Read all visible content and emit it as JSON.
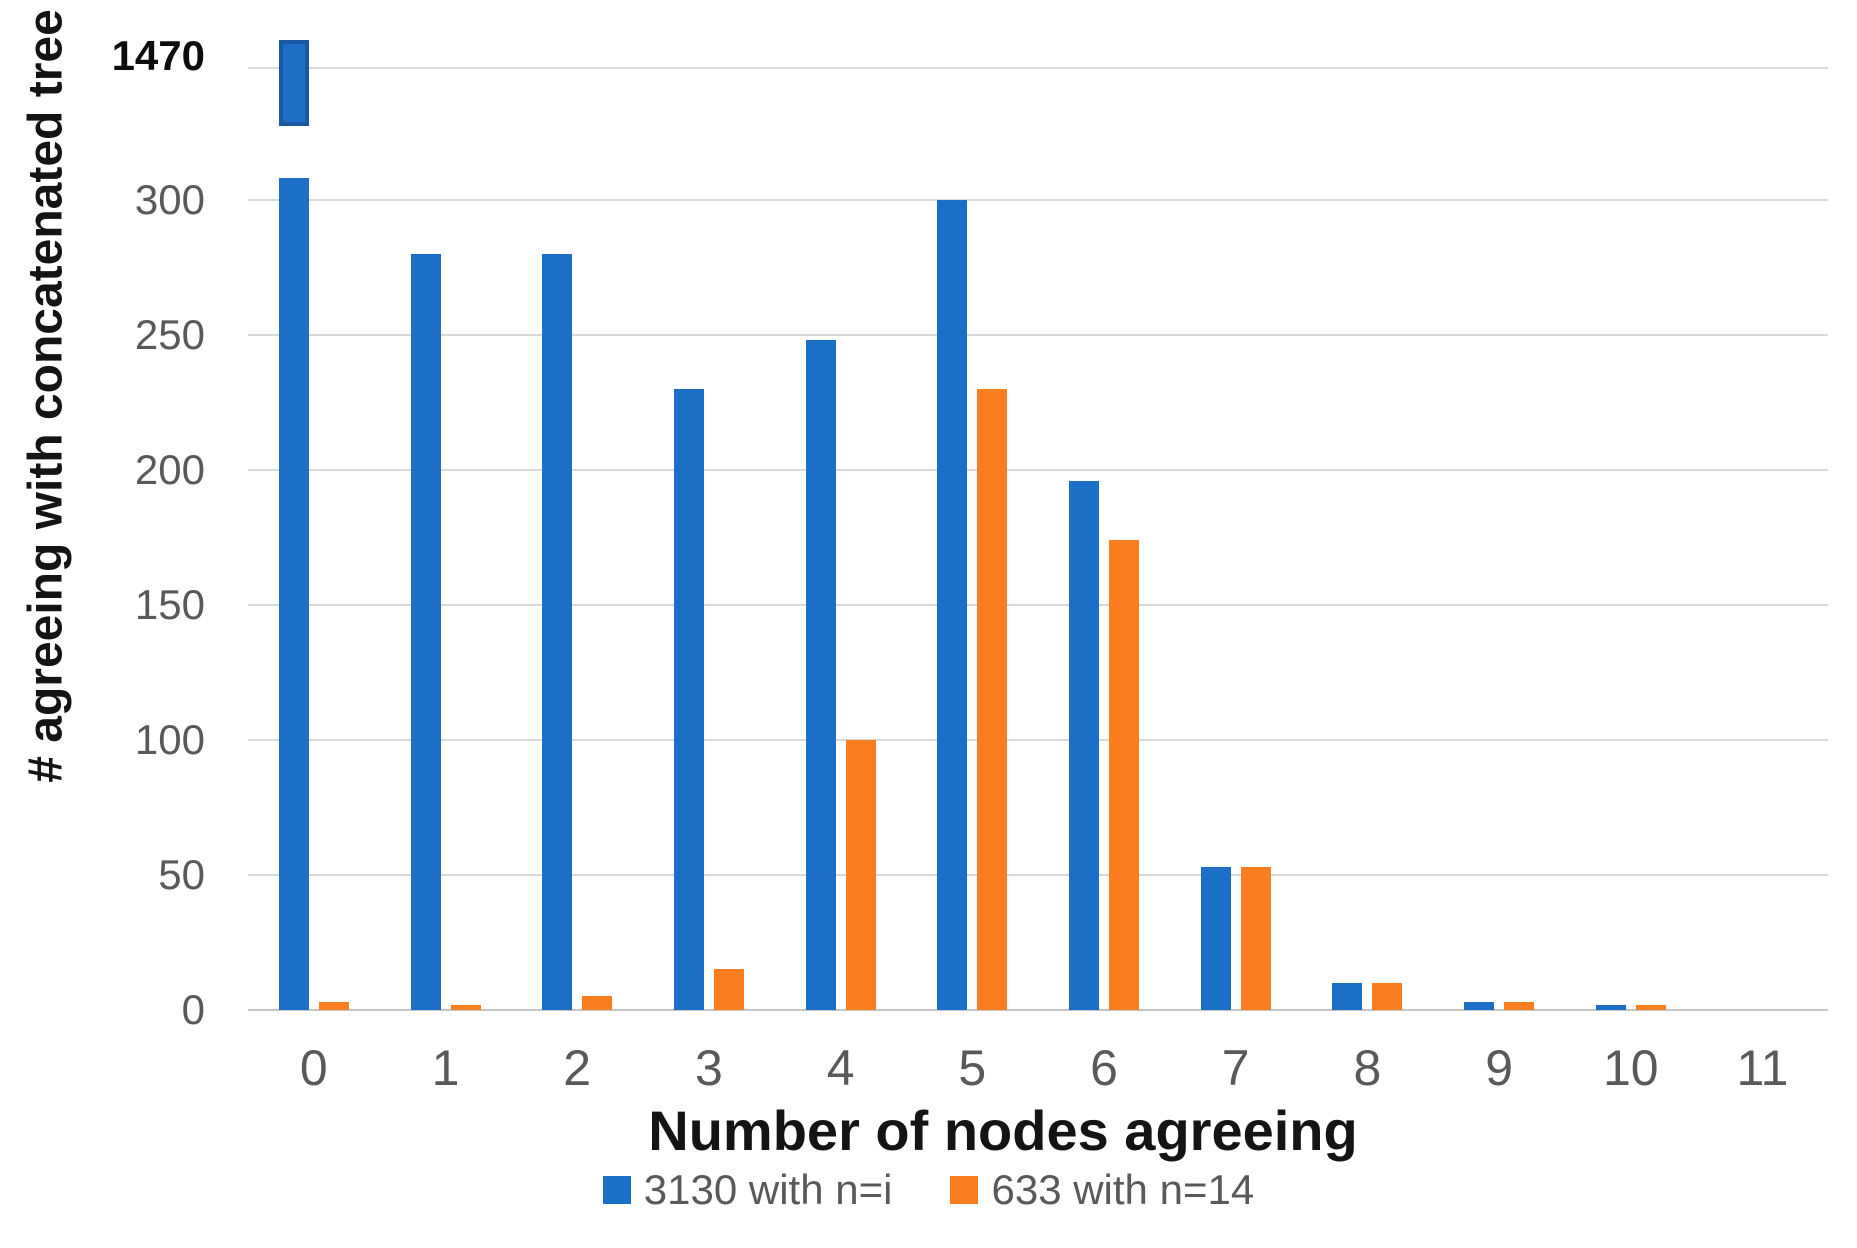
{
  "chart_data": {
    "type": "bar",
    "title": "",
    "xlabel": "Number of nodes agreeing",
    "ylabel": "# agreeing with concatenated tree",
    "categories": [
      "0",
      "1",
      "2",
      "3",
      "4",
      "5",
      "6",
      "7",
      "8",
      "9",
      "10",
      "11"
    ],
    "series": [
      {
        "name": "3130 with n=i",
        "color": "#1c6fc7",
        "values": [
          1470,
          280,
          280,
          230,
          248,
          300,
          196,
          53,
          10,
          3,
          2,
          0
        ]
      },
      {
        "name": "633 with n=14",
        "color": "#fa7e1e",
        "values": [
          3,
          2,
          5,
          15,
          100,
          230,
          174,
          53,
          10,
          3,
          2,
          0
        ]
      }
    ],
    "y_ticks": [
      0,
      50,
      100,
      150,
      200,
      250,
      300
    ],
    "broken_axis": {
      "tick_label": "1470",
      "value": 1470
    },
    "ylim": [
      0,
      310
    ],
    "grid": "horizontal-only",
    "legend_position": "bottom"
  },
  "colors": {
    "series_blue": "#1c6fc7",
    "series_orange": "#fa7e1e",
    "gridline": "#d9d9d9",
    "axis_line": "#c6c6c6",
    "tick_text": "#595959",
    "title_text": "#141414"
  }
}
